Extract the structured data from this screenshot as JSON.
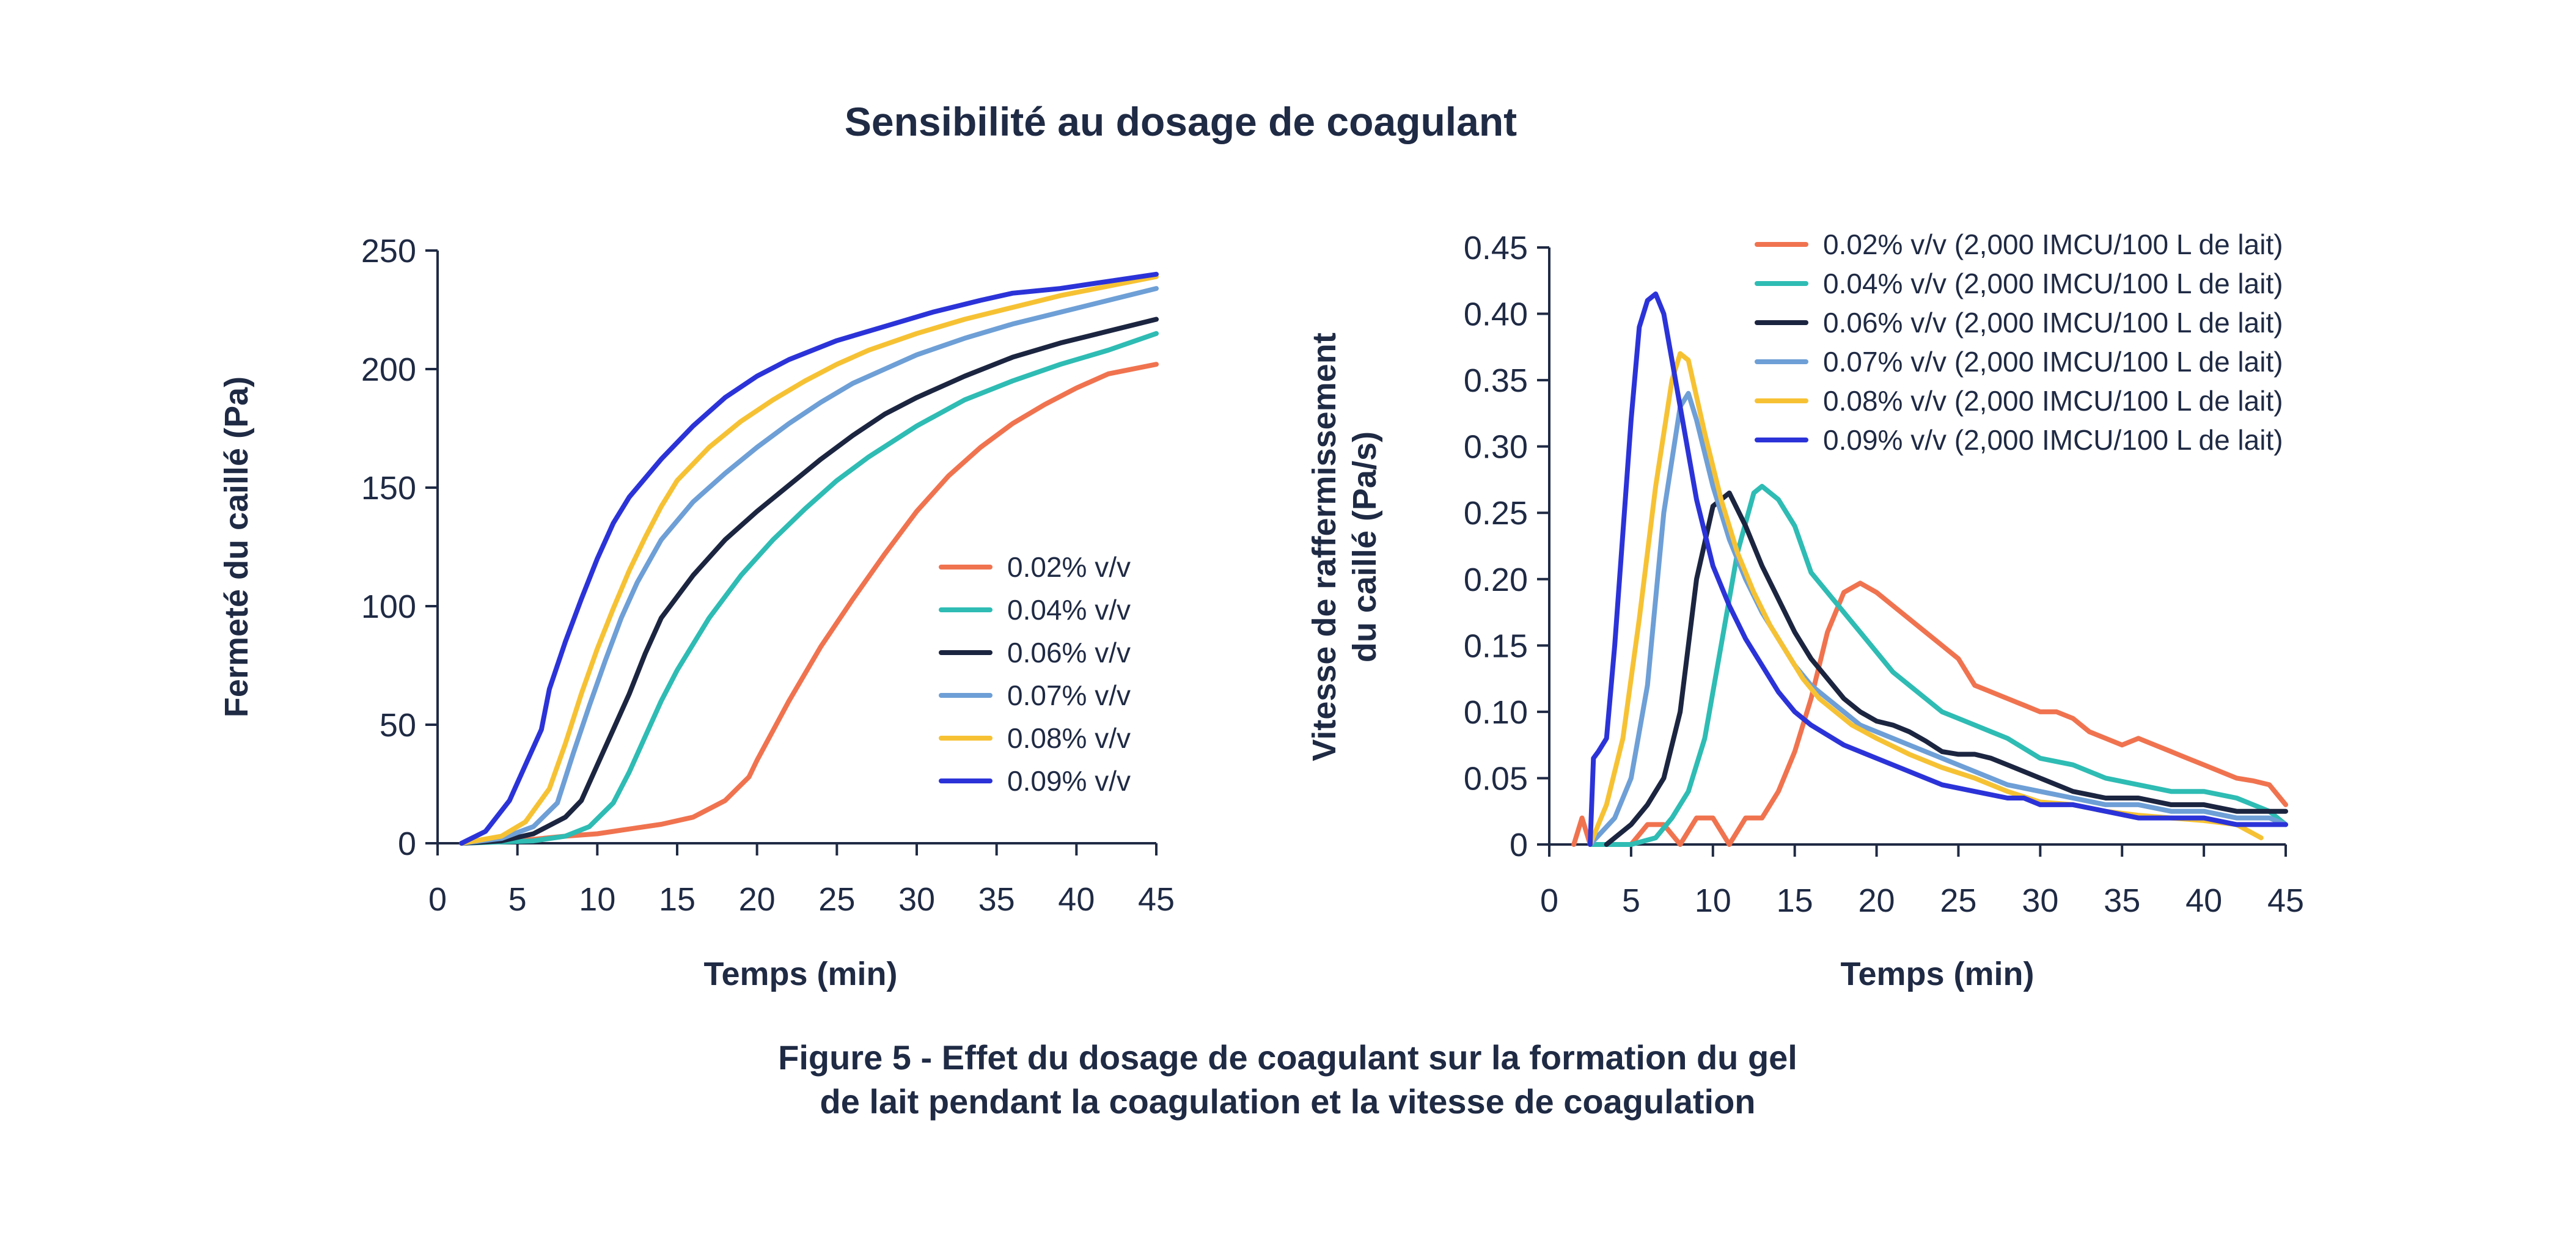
{
  "title": "Sensibilité au dosage de coagulant",
  "caption": {
    "line1": "Figure 5 - Effet du dosage de coagulant sur la formation du gel",
    "line2": "de lait pendant la coagulation et la vitesse de coagulation"
  },
  "colors": {
    "axis": "#1f2a44",
    "s002": "#f0734f",
    "s004": "#2ebcb4",
    "s006": "#1c2540",
    "s007": "#6e9fd6",
    "s008": "#f6c234",
    "s009": "#2b33d8"
  },
  "chart_data": [
    {
      "type": "line",
      "title": "",
      "xlabel": "Temps (min)",
      "ylabel": "Fermeté du caillé (Pa)",
      "xlim": [
        0,
        45
      ],
      "ylim": [
        0,
        250
      ],
      "xticks": [
        "0",
        "5",
        "10",
        "15",
        "20",
        "25",
        "30",
        "35",
        "40",
        "45"
      ],
      "yticks": [
        "0",
        "50",
        "100",
        "150",
        "200",
        "250"
      ],
      "legend_position": "center-right",
      "series": [
        {
          "name": "0.02% v/v",
          "color_key": "s002",
          "x": [
            1.5,
            5,
            8,
            10,
            12,
            14,
            16,
            18,
            19.5,
            20,
            22,
            24,
            26,
            28,
            30,
            32,
            34,
            36,
            38,
            40,
            42,
            45
          ],
          "y": [
            0,
            1,
            3,
            4,
            6,
            8,
            11,
            18,
            28,
            35,
            60,
            83,
            103,
            122,
            140,
            155,
            167,
            177,
            185,
            192,
            198,
            202
          ]
        },
        {
          "name": "0.04% v/v",
          "color_key": "s004",
          "x": [
            1.5,
            6,
            8,
            9.5,
            11,
            12,
            13,
            14,
            15,
            17,
            19,
            21,
            23,
            25,
            27,
            30,
            33,
            36,
            39,
            42,
            45
          ],
          "y": [
            0,
            1,
            3,
            7,
            17,
            30,
            45,
            60,
            73,
            95,
            113,
            128,
            141,
            153,
            163,
            176,
            187,
            195,
            202,
            208,
            215
          ]
        },
        {
          "name": "0.06% v/v",
          "color_key": "s006",
          "x": [
            1.5,
            4,
            6,
            8,
            9,
            10,
            11,
            12,
            13,
            14,
            16,
            18,
            20,
            22,
            24,
            26,
            28,
            30,
            33,
            36,
            39,
            42,
            45
          ],
          "y": [
            0,
            1,
            4,
            11,
            18,
            33,
            48,
            63,
            80,
            95,
            113,
            128,
            140,
            151,
            162,
            172,
            181,
            188,
            197,
            205,
            211,
            216,
            221
          ]
        },
        {
          "name": "0.07% v/v",
          "color_key": "s007",
          "x": [
            1.5,
            4,
            6,
            7.5,
            8.5,
            9.5,
            10.5,
            11.5,
            12.5,
            14,
            16,
            18,
            20,
            22,
            24,
            26,
            28,
            30,
            33,
            36,
            39,
            42,
            45
          ],
          "y": [
            0,
            2,
            7,
            17,
            38,
            58,
            77,
            95,
            110,
            128,
            144,
            156,
            167,
            177,
            186,
            194,
            200,
            206,
            213,
            219,
            224,
            229,
            234
          ]
        },
        {
          "name": "0.08% v/v",
          "color_key": "s008",
          "x": [
            1.5,
            4,
            5.5,
            7,
            8,
            9,
            10,
            11,
            12,
            13,
            14,
            15,
            17,
            19,
            21,
            23,
            25,
            27,
            30,
            33,
            36,
            39,
            42,
            45
          ],
          "y": [
            0,
            3,
            9,
            23,
            42,
            63,
            82,
            99,
            115,
            129,
            142,
            153,
            167,
            178,
            187,
            195,
            202,
            208,
            215,
            221,
            226,
            231,
            235,
            239
          ]
        },
        {
          "name": "0.09% v/v",
          "color_key": "s009",
          "x": [
            1.5,
            3,
            4.5,
            5.5,
            6.5,
            7,
            8,
            9,
            10,
            11,
            12,
            14,
            16,
            18,
            20,
            22,
            25,
            28,
            31,
            34,
            36,
            39,
            42,
            45
          ],
          "y": [
            0,
            5,
            18,
            33,
            48,
            65,
            85,
            103,
            120,
            135,
            146,
            162,
            176,
            188,
            197,
            204,
            212,
            218,
            224,
            229,
            232,
            234,
            237,
            240
          ]
        }
      ]
    },
    {
      "type": "line",
      "title": "",
      "xlabel": "Temps (min)",
      "ylabel_line1": "Vitesse de raffermissement",
      "ylabel_line2": "du caillé (Pa/s)",
      "xlim": [
        0,
        45
      ],
      "ylim": [
        0,
        0.45
      ],
      "xticks": [
        "0",
        "5",
        "10",
        "15",
        "20",
        "25",
        "30",
        "35",
        "40",
        "45"
      ],
      "yticks": [
        "0",
        "0.05",
        "0.10",
        "0.15",
        "0.20",
        "0.25",
        "0.30",
        "0.35",
        "0.40",
        "0.45"
      ],
      "legend_position": "top-right",
      "series": [
        {
          "name": "0.02% v/v (2,000 IMCU/100 L de lait)",
          "color_key": "s002",
          "x": [
            1.5,
            2,
            2.5,
            3.5,
            5,
            6,
            7,
            8,
            9,
            10,
            11,
            12,
            13,
            14,
            15,
            16,
            17,
            18,
            19,
            20,
            21,
            22,
            23,
            24,
            25,
            26,
            27,
            28,
            29,
            30,
            31,
            32,
            33,
            34,
            35,
            36,
            37,
            38,
            39,
            40,
            41,
            42,
            43,
            44,
            45
          ],
          "y": [
            0,
            0.02,
            0,
            0,
            0,
            0.015,
            0.015,
            0,
            0.02,
            0.02,
            0,
            0.02,
            0.02,
            0.04,
            0.07,
            0.11,
            0.16,
            0.19,
            0.197,
            0.19,
            0.18,
            0.17,
            0.16,
            0.15,
            0.14,
            0.12,
            0.115,
            0.11,
            0.105,
            0.1,
            0.1,
            0.095,
            0.085,
            0.08,
            0.075,
            0.08,
            0.075,
            0.07,
            0.065,
            0.06,
            0.055,
            0.05,
            0.048,
            0.045,
            0.03
          ]
        },
        {
          "name": "0.04% v/v (2,000 IMCU/100 L de lait)",
          "color_key": "s004",
          "x": [
            2.5,
            5,
            6.5,
            7.5,
            8.5,
            9.5,
            10.5,
            11.5,
            12.5,
            13,
            14,
            15,
            16,
            17,
            18,
            19,
            20,
            21,
            22,
            23,
            24,
            25,
            26,
            27,
            28,
            30,
            32,
            34,
            36,
            38,
            40,
            42,
            44,
            45
          ],
          "y": [
            0,
            0,
            0.005,
            0.02,
            0.04,
            0.08,
            0.15,
            0.22,
            0.265,
            0.27,
            0.26,
            0.24,
            0.205,
            0.19,
            0.175,
            0.16,
            0.145,
            0.13,
            0.12,
            0.11,
            0.1,
            0.095,
            0.09,
            0.085,
            0.08,
            0.065,
            0.06,
            0.05,
            0.045,
            0.04,
            0.04,
            0.035,
            0.025,
            0.015
          ]
        },
        {
          "name": "0.06% v/v (2,000 IMCU/100 L de lait)",
          "color_key": "s006",
          "x": [
            3.5,
            5,
            6,
            7,
            8,
            9,
            10,
            11,
            12,
            13,
            14,
            15,
            16,
            17,
            18,
            19,
            20,
            21,
            22,
            23,
            24,
            25,
            26,
            27,
            28,
            29,
            30,
            32,
            34,
            36,
            38,
            40,
            42,
            44,
            45
          ],
          "y": [
            0,
            0.015,
            0.03,
            0.05,
            0.1,
            0.2,
            0.255,
            0.265,
            0.24,
            0.21,
            0.185,
            0.16,
            0.14,
            0.125,
            0.11,
            0.1,
            0.093,
            0.09,
            0.085,
            0.078,
            0.07,
            0.068,
            0.068,
            0.065,
            0.06,
            0.055,
            0.05,
            0.04,
            0.035,
            0.035,
            0.03,
            0.03,
            0.025,
            0.025,
            0.025
          ]
        },
        {
          "name": "0.07% v/v (2,000 IMCU/100 L de lait)",
          "color_key": "s007",
          "x": [
            2.5,
            4,
            5,
            6,
            7,
            8,
            8.5,
            9,
            10,
            11,
            12,
            13,
            14,
            15,
            16,
            17,
            18,
            19,
            20,
            22,
            24,
            26,
            28,
            30,
            32,
            34,
            36,
            38,
            40,
            42,
            44,
            45
          ],
          "y": [
            0,
            0.02,
            0.05,
            0.12,
            0.25,
            0.33,
            0.34,
            0.32,
            0.27,
            0.23,
            0.2,
            0.175,
            0.155,
            0.135,
            0.12,
            0.11,
            0.1,
            0.09,
            0.085,
            0.075,
            0.065,
            0.055,
            0.045,
            0.04,
            0.035,
            0.03,
            0.03,
            0.025,
            0.025,
            0.02,
            0.02,
            0.015
          ]
        },
        {
          "name": "0.08% v/v (2,000 IMCU/100 L de lait)",
          "color_key": "s008",
          "x": [
            2.5,
            3.5,
            4.5,
            5.5,
            6.5,
            7.5,
            8,
            8.5,
            9.5,
            10.5,
            11.5,
            12.5,
            13.5,
            14.5,
            15.5,
            16.5,
            17.5,
            18.5,
            20,
            22,
            24,
            26,
            28,
            30,
            32,
            34,
            36,
            38,
            40,
            42,
            43.5
          ],
          "y": [
            0,
            0.03,
            0.08,
            0.17,
            0.27,
            0.35,
            0.37,
            0.365,
            0.31,
            0.26,
            0.22,
            0.19,
            0.165,
            0.145,
            0.125,
            0.11,
            0.1,
            0.09,
            0.08,
            0.068,
            0.058,
            0.05,
            0.04,
            0.032,
            0.03,
            0.025,
            0.022,
            0.02,
            0.018,
            0.015,
            0.005
          ]
        },
        {
          "name": "0.09% v/v (2,000 IMCU/100 L de lait)",
          "color_key": "s009",
          "x": [
            2.5,
            2.7,
            3,
            3.5,
            4,
            5,
            5.5,
            6,
            6.5,
            7,
            8,
            9,
            10,
            11,
            12,
            13,
            14,
            15,
            16,
            18,
            20,
            22,
            24,
            26,
            28,
            29,
            30,
            31,
            32,
            34,
            36,
            38,
            40,
            42,
            44,
            45
          ],
          "y": [
            0,
            0.065,
            0.07,
            0.08,
            0.15,
            0.32,
            0.39,
            0.41,
            0.415,
            0.4,
            0.33,
            0.26,
            0.21,
            0.18,
            0.155,
            0.135,
            0.115,
            0.1,
            0.09,
            0.075,
            0.065,
            0.055,
            0.045,
            0.04,
            0.035,
            0.035,
            0.03,
            0.03,
            0.03,
            0.025,
            0.02,
            0.02,
            0.02,
            0.015,
            0.015,
            0.015
          ]
        }
      ]
    }
  ]
}
